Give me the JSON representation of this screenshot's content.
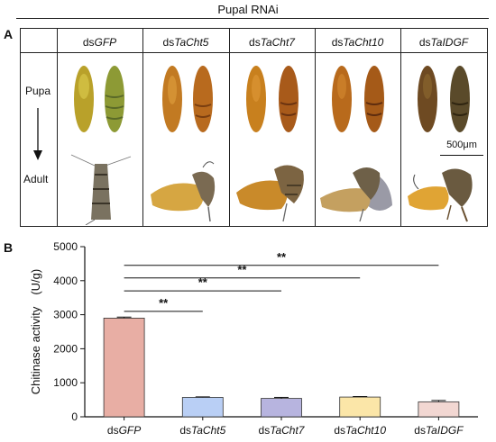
{
  "figure": {
    "title": "Pupal RNAi",
    "panel_a_letter": "A",
    "panel_b_letter": "B"
  },
  "panel_a": {
    "row_labels": [
      "Pupa",
      "Adult"
    ],
    "columns": [
      {
        "prefix": "ds",
        "name": "GFP"
      },
      {
        "prefix": "ds",
        "name": "TaCht5"
      },
      {
        "prefix": "ds",
        "name": "TaCht7"
      },
      {
        "prefix": "ds",
        "name": "TaCht10"
      },
      {
        "prefix": "ds",
        "name": "TaIDGF"
      }
    ],
    "scale_bar_label": "500μm"
  },
  "chart_data": {
    "type": "bar",
    "categories": [
      "dsGFP",
      "dsTaCht5",
      "dsTaCht7",
      "dsTaCht10",
      "dsTaIDGF"
    ],
    "category_parts": [
      {
        "prefix": "ds",
        "name": "GFP"
      },
      {
        "prefix": "ds",
        "name": "TaCht5"
      },
      {
        "prefix": "ds",
        "name": "TaCht7"
      },
      {
        "prefix": "ds",
        "name": "TaCht10"
      },
      {
        "prefix": "ds",
        "name": "TaIDGF"
      }
    ],
    "values": [
      2900,
      570,
      540,
      580,
      440
    ],
    "errors": [
      30,
      15,
      30,
      15,
      40
    ],
    "colors": [
      "#e8aea4",
      "#b9cff5",
      "#b7b4df",
      "#fbe6a8",
      "#f2d7d2"
    ],
    "ylabel": "Chitinase activity　(U/g)",
    "ylim": [
      0,
      5000
    ],
    "yticks": [
      0,
      1000,
      2000,
      3000,
      4000,
      5000
    ],
    "significance": [
      {
        "label": "**",
        "from": "dsGFP",
        "to": "dsTaIDGF"
      },
      {
        "label": "**",
        "from": "dsGFP",
        "to": "dsTaCht10"
      },
      {
        "label": "**",
        "from": "dsGFP",
        "to": "dsTaCht7"
      },
      {
        "label": "**",
        "from": "dsGFP",
        "to": "dsTaCht5"
      }
    ],
    "grid": false,
    "legend": "none"
  }
}
